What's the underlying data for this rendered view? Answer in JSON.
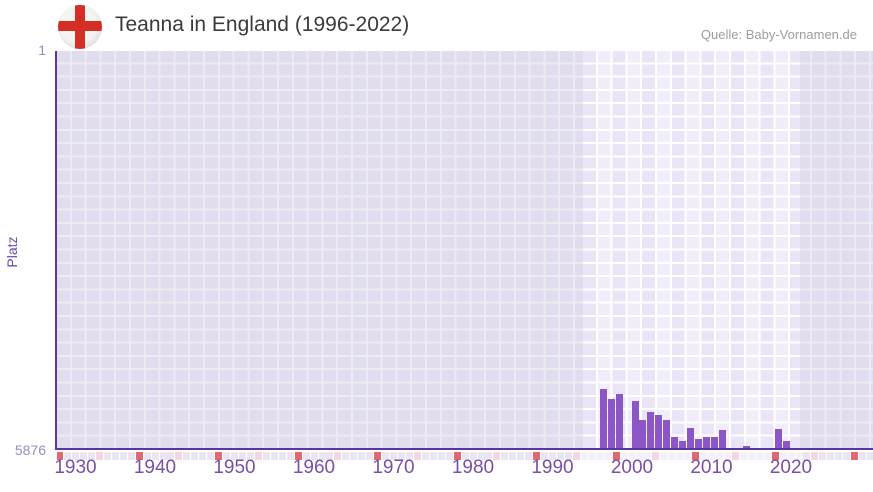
{
  "header": {
    "title": "Teanna in England (1996-2022)",
    "source": "Quelle: Baby-Vornamen.de",
    "flag": "england-flag"
  },
  "colors": {
    "bar": "#8a57c5",
    "axis": "#5b35a0",
    "tick_label": "#7a4fa8",
    "value_label": "#9a8ac8",
    "decade_cell": "#e0696f",
    "half_decade_cell": "#f3d7e0",
    "plot_bg": "#e2ddee",
    "plot_bg_highlight": "#f1edf9",
    "flag_red": "#d32f27",
    "title_text": "#3b3b3b",
    "source_text": "#9c9c9c"
  },
  "chart_data": {
    "type": "bar",
    "title": "Teanna in England (1996-2022)",
    "series_name": "Teanna",
    "xlabel": "",
    "ylabel": "Platz",
    "y_axis_inverted": true,
    "y_min_rank": 1,
    "y_max_rank": 5876,
    "y_tick_labels": [
      "1",
      "5876"
    ],
    "x_domain": [
      1927,
      2030
    ],
    "x_tick_labels": [
      1930,
      1940,
      1950,
      1960,
      1970,
      1980,
      1990,
      2000,
      2010,
      2020
    ],
    "highlight_period": [
      1994,
      2021
    ],
    "strip_markers": {
      "decade_start": 1928,
      "half_decade_start": 1933,
      "interval": 10
    },
    "grid": true,
    "legend": false,
    "years": [
      1996,
      1997,
      1998,
      1999,
      2000,
      2001,
      2002,
      2003,
      2004,
      2005,
      2006,
      2007,
      2008,
      2009,
      2010,
      2011,
      2012,
      2013,
      2014,
      2015,
      2016,
      2017,
      2018,
      2019,
      2020,
      2021,
      2022
    ],
    "ranks": [
      5007,
      5154,
      5080,
      null,
      5183,
      5463,
      5345,
      5389,
      5463,
      5713,
      5772,
      5580,
      5742,
      5713,
      5713,
      5610,
      null,
      null,
      5861,
      null,
      null,
      null,
      5595,
      5772,
      null,
      null,
      null
    ]
  }
}
